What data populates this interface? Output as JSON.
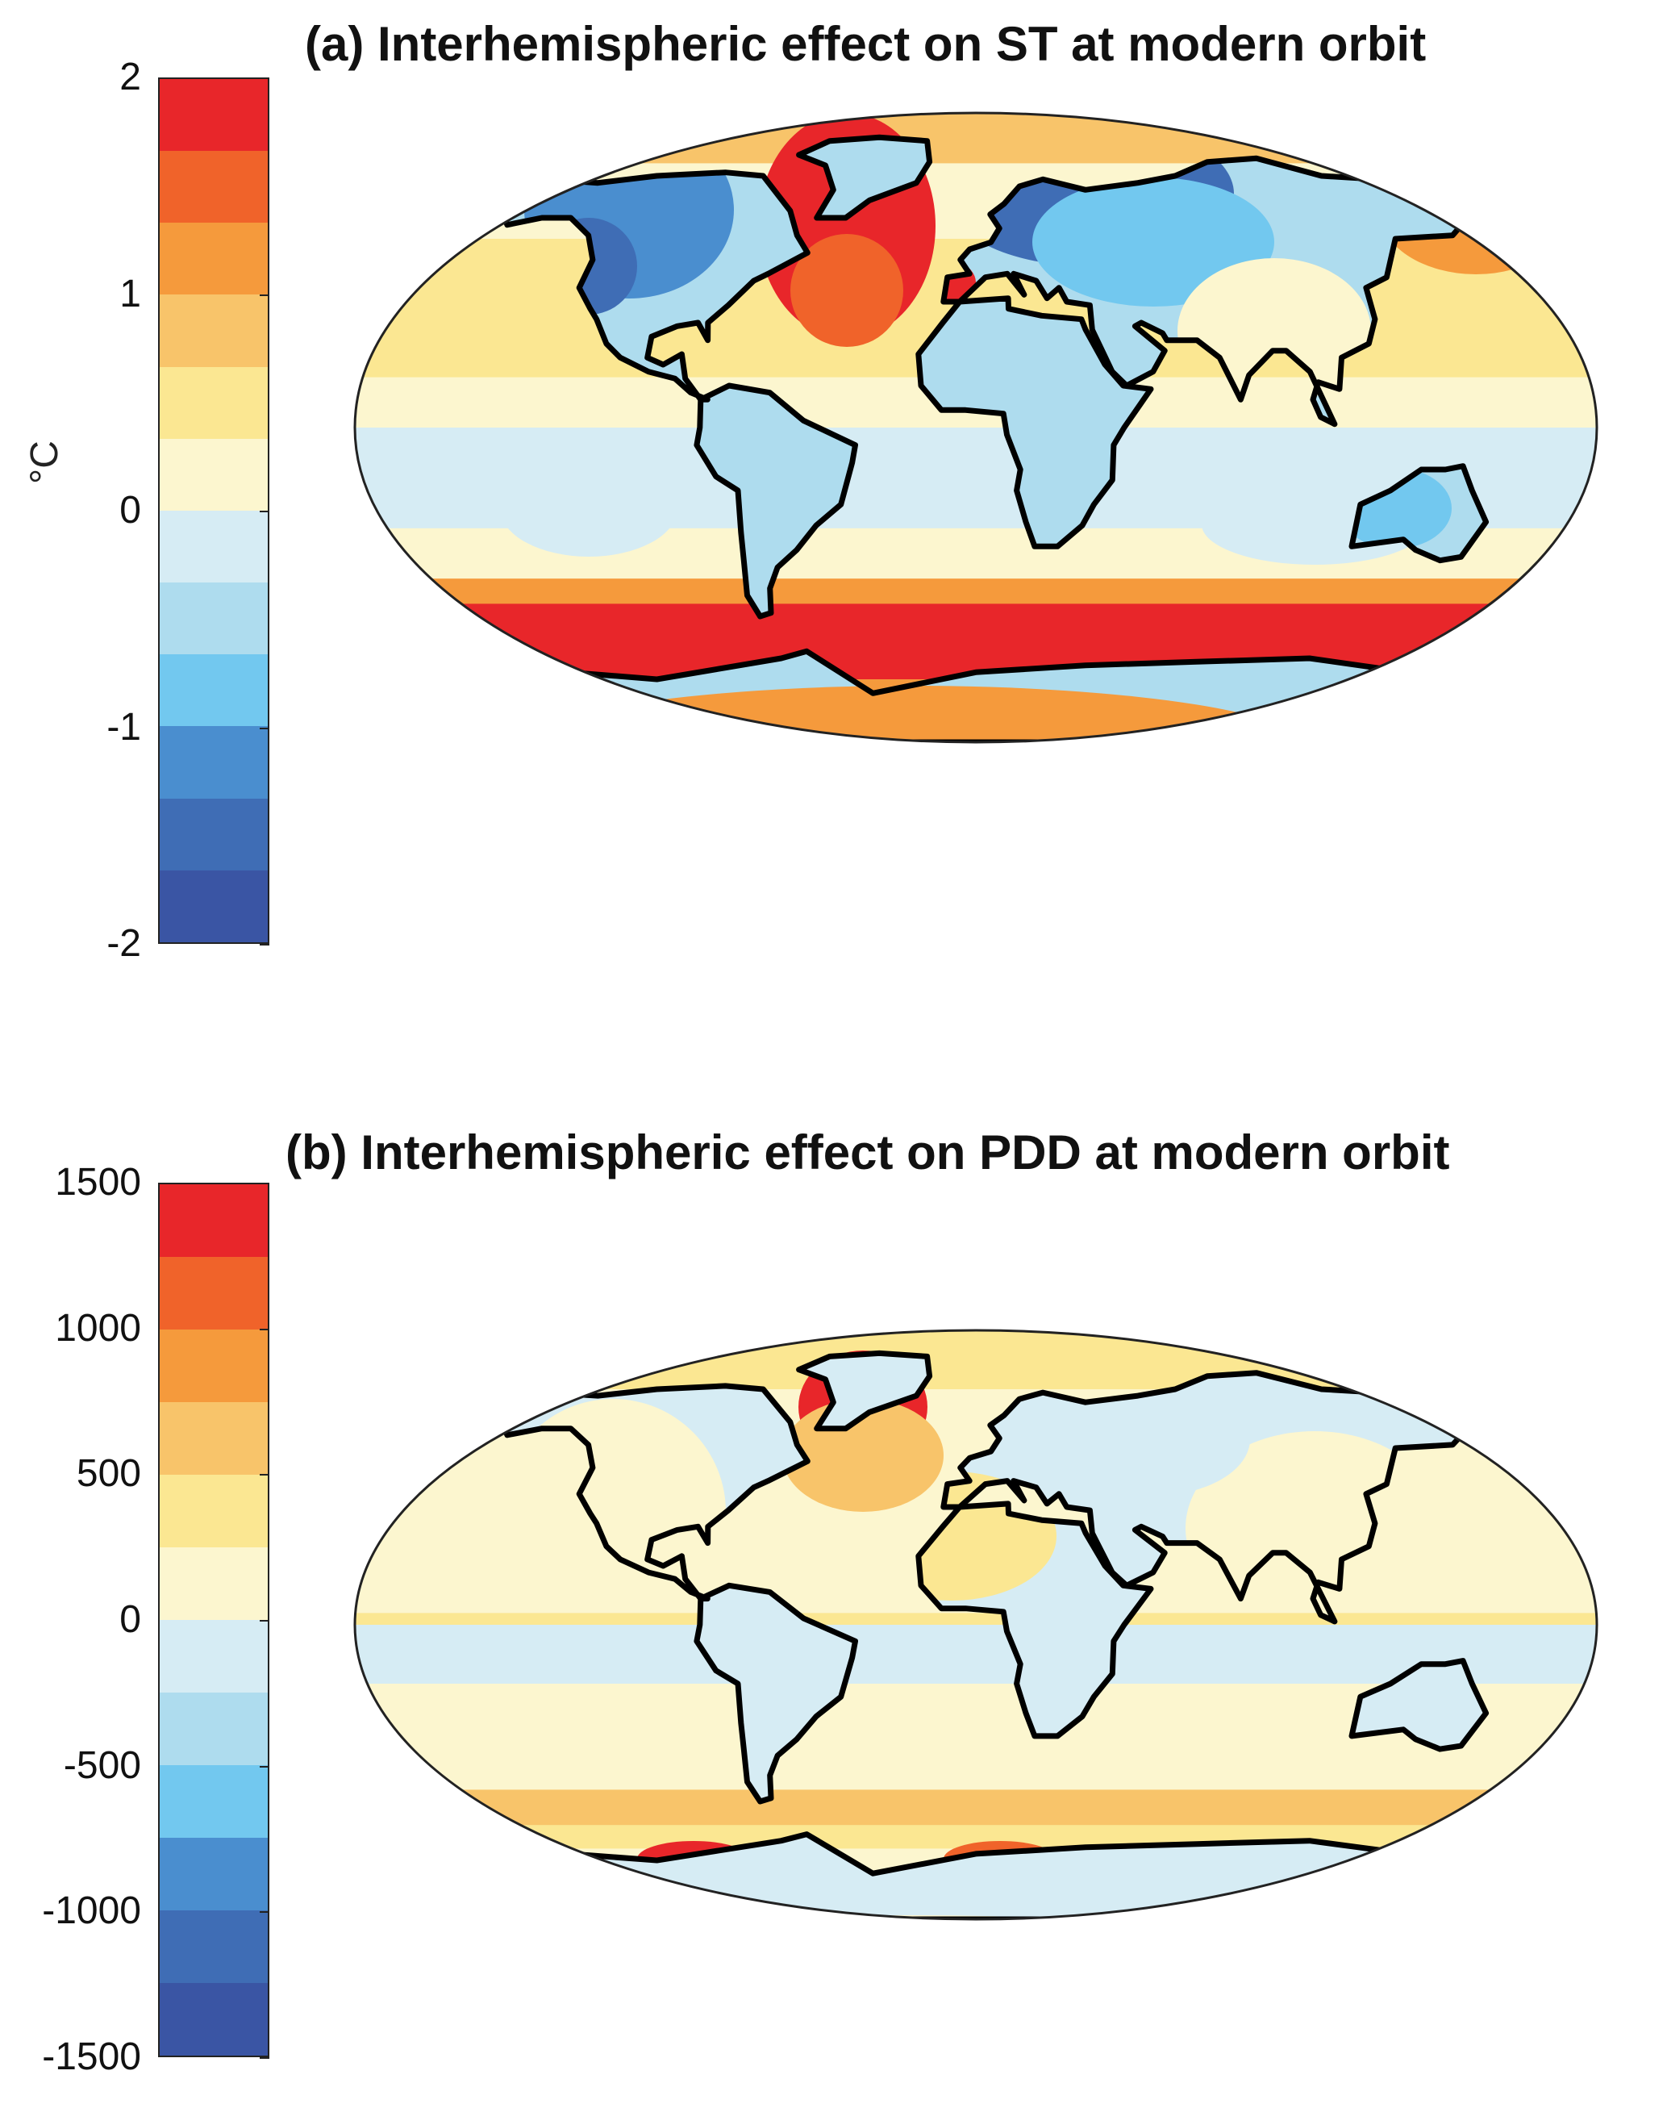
{
  "panels": [
    {
      "id": "a",
      "title": "(a) Interhemispheric effect on ST at modern orbit",
      "colorbar": {
        "unit": "°C",
        "range": [
          -2,
          2
        ],
        "ticks": [
          "2",
          "1",
          "0",
          "-1",
          "-2"
        ],
        "levels": 12
      }
    },
    {
      "id": "b",
      "title": "(b) Interhemispheric effect on PDD at modern orbit",
      "colorbar": {
        "unit": "",
        "range": [
          -1500,
          1500
        ],
        "ticks": [
          "1500",
          "1000",
          "500",
          "0",
          "-500",
          "-1000",
          "-1500"
        ],
        "levels": 12
      }
    }
  ],
  "palette": [
    "#e8262a",
    "#f0632a",
    "#f59a3c",
    "#f8c46a",
    "#fbe792",
    "#fcf6cf",
    "#d6ecf4",
    "#aedcee",
    "#72c8ef",
    "#4a8ecf",
    "#3f6db5",
    "#3a55a4"
  ],
  "coastline_color": "#000000"
}
